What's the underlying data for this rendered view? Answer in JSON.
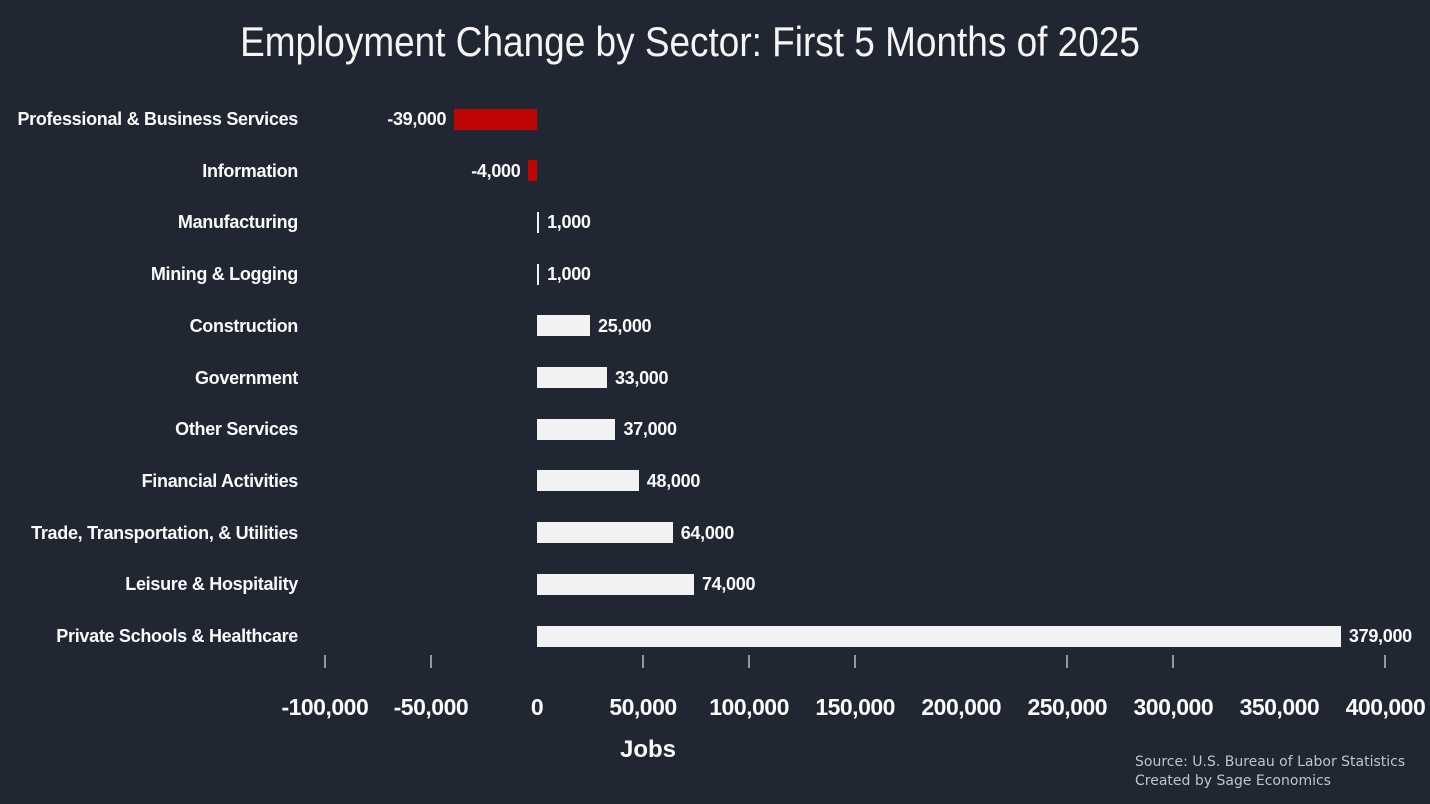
{
  "page": {
    "background_color": "#212732"
  },
  "chart_data": {
    "type": "bar",
    "orientation": "horizontal",
    "title": "Employment Change by Sector: First 5 Months of 2025",
    "xlabel": "Jobs",
    "ylabel": "",
    "grid": false,
    "legend_position": "none",
    "categories": [
      "Professional & Business Services",
      "Information",
      "Manufacturing",
      "Mining & Logging",
      "Construction",
      "Government",
      "Other Services",
      "Financial Activities",
      "Trade, Transportation, & Utilities",
      "Leisure & Hospitality",
      "Private Schools & Healthcare"
    ],
    "values": [
      -39000,
      -4000,
      1000,
      1000,
      25000,
      33000,
      37000,
      48000,
      64000,
      74000,
      379000
    ],
    "value_labels": [
      "-39,000",
      "-4,000",
      "1,000",
      "1,000",
      "25,000",
      "33,000",
      "37,000",
      "48,000",
      "64,000",
      "74,000",
      "379,000"
    ],
    "bar_color_positive": "#f2f2f2",
    "bar_color_negative": "#c00505",
    "xlim": [
      -107000,
      421000
    ],
    "x_ticks": [
      {
        "value": -100000,
        "label": "-100,000"
      },
      {
        "value": -50000,
        "label": "-50,000"
      },
      {
        "value": 0,
        "label": "0"
      },
      {
        "value": 50000,
        "label": "50,000"
      },
      {
        "value": 100000,
        "label": "100,000"
      },
      {
        "value": 150000,
        "label": "150,000"
      },
      {
        "value": 200000,
        "label": "200,000"
      },
      {
        "value": 250000,
        "label": "250,000"
      },
      {
        "value": 300000,
        "label": "300,000"
      },
      {
        "value": 350000,
        "label": "350,000"
      },
      {
        "value": 400000,
        "label": "400,000"
      }
    ],
    "visible_tick_marks": [
      -100000,
      -50000,
      50000,
      100000,
      150000,
      250000,
      300000,
      400000
    ],
    "text_color": "#fafafa"
  },
  "footer": {
    "source_line1": "Source: U.S. Bureau of Labor Statistics",
    "source_line2": "Created by Sage Economics"
  }
}
